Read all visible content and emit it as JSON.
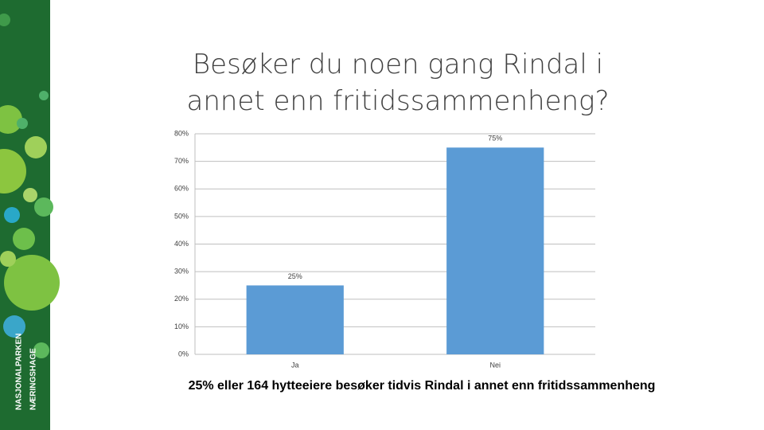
{
  "chart_data": {
    "type": "bar",
    "title": "Besøker du noen gang Rindal i annet enn fritidssammenheng?",
    "categories": [
      "Ja",
      "Nei"
    ],
    "values": [
      25,
      75
    ],
    "value_labels": [
      "25%",
      "75%"
    ],
    "color": "#5b9bd5",
    "ylim": [
      0,
      80
    ],
    "yticks": [
      {
        "value": 0,
        "label": "0%"
      },
      {
        "value": 10,
        "label": "10%"
      },
      {
        "value": 20,
        "label": "20%"
      },
      {
        "value": 30,
        "label": "30%"
      },
      {
        "value": 40,
        "label": "40%"
      },
      {
        "value": 50,
        "label": "50%"
      },
      {
        "value": 60,
        "label": "60%"
      },
      {
        "value": 70,
        "label": "70%"
      },
      {
        "value": 80,
        "label": "80%"
      }
    ],
    "grid": true,
    "caption": "25% eller 164 hytteeiere besøker tidvis Rindal i annet enn fritidssammenheng"
  },
  "sidebar": {
    "logo": [
      "NASJONALPARKEN",
      "NÆRINGSHAGE"
    ]
  }
}
